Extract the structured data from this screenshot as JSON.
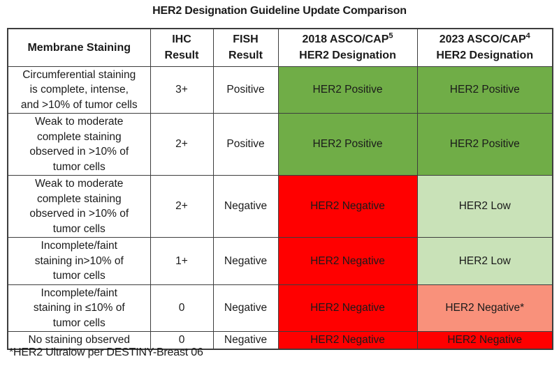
{
  "title": "HER2 Designation Guideline Update Comparison",
  "footnote": "*HER2 Ultralow per DESTINY-Breast 06",
  "colors": {
    "border": "#3d3d3d",
    "text": "#1a1a1a",
    "background": "#ffffff",
    "positive_green": "#70AD47",
    "low_green": "#C9E2B8",
    "negative_red": "#FF0000",
    "negative_salmon": "#F9917B"
  },
  "table": {
    "headers": [
      {
        "line1": "Membrane Staining",
        "sup": "",
        "line2": ""
      },
      {
        "line1": "IHC",
        "sup": "",
        "line2": "Result"
      },
      {
        "line1": "FISH",
        "sup": "",
        "line2": "Result"
      },
      {
        "line1": "2018 ASCO/CAP",
        "sup": "5",
        "line2": "HER2 Designation"
      },
      {
        "line1": "2023 ASCO/CAP",
        "sup": "4",
        "line2": "HER2 Designation"
      }
    ],
    "rows": [
      {
        "membrane_staining_lines": [
          "Circumferential staining",
          "is complete, intense,",
          "and >10% of tumor cells"
        ],
        "ihc_result": "3+",
        "fish_result": "Positive",
        "designation_2018": {
          "label": "HER2 Positive",
          "color": "positive_green"
        },
        "designation_2023": {
          "label": "HER2 Positive",
          "color": "positive_green"
        }
      },
      {
        "membrane_staining_lines": [
          "Weak to moderate",
          "complete staining",
          "observed in >10% of",
          "tumor cells"
        ],
        "ihc_result": "2+",
        "fish_result": "Positive",
        "designation_2018": {
          "label": "HER2 Positive",
          "color": "positive_green"
        },
        "designation_2023": {
          "label": "HER2 Positive",
          "color": "positive_green"
        }
      },
      {
        "membrane_staining_lines": [
          "Weak to moderate",
          "complete staining",
          "observed in >10% of",
          "tumor cells"
        ],
        "ihc_result": "2+",
        "fish_result": "Negative",
        "designation_2018": {
          "label": "HER2 Negative",
          "color": "negative_red"
        },
        "designation_2023": {
          "label": "HER2 Low",
          "color": "low_green"
        }
      },
      {
        "membrane_staining_lines": [
          "Incomplete/faint",
          "staining in>10% of",
          "tumor cells"
        ],
        "ihc_result": "1+",
        "fish_result": "Negative",
        "designation_2018": {
          "label": "HER2 Negative",
          "color": "negative_red"
        },
        "designation_2023": {
          "label": "HER2 Low",
          "color": "low_green"
        }
      },
      {
        "membrane_staining_lines": [
          "Incomplete/faint",
          "staining in ≤10% of",
          "tumor cells"
        ],
        "ihc_result": "0",
        "fish_result": "Negative",
        "designation_2018": {
          "label": "HER2 Negative",
          "color": "negative_red"
        },
        "designation_2023": {
          "label": "HER2 Negative*",
          "color": "negative_salmon"
        }
      },
      {
        "membrane_staining_lines": [
          "No staining observed"
        ],
        "ihc_result": "0",
        "fish_result": "Negative",
        "designation_2018": {
          "label": "HER2 Negative",
          "color": "negative_red"
        },
        "designation_2023": {
          "label": "HER2 Negative",
          "color": "negative_red"
        }
      }
    ]
  }
}
